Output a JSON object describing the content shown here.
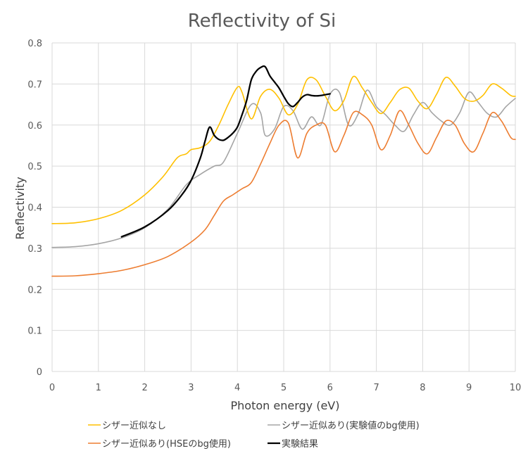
{
  "chart_data": {
    "type": "line",
    "title": "Reflectivity of Si",
    "xlabel": "Photon energy (eV)",
    "ylabel": "Reflectivity",
    "xlim": [
      0,
      10
    ],
    "ylim": [
      0,
      0.8
    ],
    "xticks": [
      0,
      1,
      2,
      3,
      4,
      5,
      6,
      7,
      8,
      9,
      10
    ],
    "yticks": [
      0,
      0.1,
      0.2,
      0.3,
      0.4,
      0.5,
      0.6,
      0.7,
      0.8
    ],
    "grid": true,
    "legend_position": "bottom",
    "series": [
      {
        "name": "シザー近似なし",
        "color": "#FFC000",
        "x": [
          0,
          0.5,
          1.0,
          1.5,
          2.0,
          2.4,
          2.7,
          2.9,
          3.0,
          3.2,
          3.4,
          3.6,
          3.8,
          4.0,
          4.1,
          4.3,
          4.5,
          4.7,
          4.9,
          5.1,
          5.3,
          5.5,
          5.7,
          5.9,
          6.1,
          6.3,
          6.5,
          6.7,
          6.9,
          7.1,
          7.3,
          7.5,
          7.7,
          7.9,
          8.1,
          8.3,
          8.5,
          8.7,
          8.9,
          9.1,
          9.3,
          9.5,
          9.7,
          9.9,
          10.0
        ],
        "values": [
          0.36,
          0.362,
          0.372,
          0.392,
          0.43,
          0.475,
          0.52,
          0.53,
          0.54,
          0.545,
          0.56,
          0.6,
          0.65,
          0.692,
          0.68,
          0.615,
          0.67,
          0.687,
          0.665,
          0.625,
          0.65,
          0.71,
          0.71,
          0.67,
          0.635,
          0.66,
          0.718,
          0.69,
          0.655,
          0.628,
          0.655,
          0.686,
          0.69,
          0.658,
          0.64,
          0.675,
          0.716,
          0.695,
          0.665,
          0.658,
          0.672,
          0.7,
          0.69,
          0.672,
          0.67
        ]
      },
      {
        "name": "シザー近似あり(実験値のbg使用)",
        "color": "#A5A5A5",
        "x": [
          0,
          0.5,
          1.0,
          1.5,
          2.0,
          2.5,
          2.9,
          3.2,
          3.5,
          3.7,
          4.0,
          4.3,
          4.5,
          4.6,
          4.8,
          5.0,
          5.2,
          5.4,
          5.6,
          5.8,
          6.0,
          6.2,
          6.4,
          6.6,
          6.8,
          7.0,
          7.2,
          7.4,
          7.6,
          7.8,
          8.0,
          8.2,
          8.4,
          8.6,
          8.8,
          9.0,
          9.2,
          9.4,
          9.6,
          9.8,
          10.0
        ],
        "values": [
          0.302,
          0.304,
          0.311,
          0.325,
          0.35,
          0.395,
          0.455,
          0.48,
          0.5,
          0.51,
          0.58,
          0.65,
          0.63,
          0.575,
          0.59,
          0.645,
          0.635,
          0.59,
          0.62,
          0.6,
          0.675,
          0.68,
          0.6,
          0.625,
          0.685,
          0.645,
          0.625,
          0.6,
          0.585,
          0.625,
          0.655,
          0.63,
          0.61,
          0.6,
          0.63,
          0.68,
          0.655,
          0.628,
          0.62,
          0.645,
          0.665
        ]
      },
      {
        "name": "シザー近似あり(HSEのbg使用)",
        "color": "#ED7D31",
        "x": [
          0,
          0.5,
          1.0,
          1.5,
          2.0,
          2.5,
          3.0,
          3.3,
          3.5,
          3.7,
          3.9,
          4.1,
          4.3,
          4.5,
          4.7,
          4.9,
          5.1,
          5.3,
          5.5,
          5.7,
          5.9,
          6.1,
          6.3,
          6.5,
          6.7,
          6.9,
          7.1,
          7.3,
          7.5,
          7.7,
          7.9,
          8.1,
          8.3,
          8.5,
          8.7,
          8.9,
          9.1,
          9.3,
          9.5,
          9.7,
          9.9,
          10.0
        ],
        "values": [
          0.232,
          0.233,
          0.238,
          0.246,
          0.26,
          0.28,
          0.315,
          0.345,
          0.38,
          0.415,
          0.43,
          0.445,
          0.46,
          0.505,
          0.555,
          0.6,
          0.605,
          0.52,
          0.58,
          0.6,
          0.6,
          0.535,
          0.575,
          0.63,
          0.625,
          0.6,
          0.54,
          0.575,
          0.635,
          0.6,
          0.555,
          0.53,
          0.57,
          0.61,
          0.6,
          0.555,
          0.535,
          0.58,
          0.63,
          0.61,
          0.57,
          0.565
        ]
      },
      {
        "name": "実験結果",
        "color": "#000000",
        "x": [
          1.5,
          2.0,
          2.5,
          2.8,
          3.0,
          3.2,
          3.3,
          3.4,
          3.5,
          3.6,
          3.7,
          3.8,
          3.9,
          4.0,
          4.1,
          4.2,
          4.3,
          4.4,
          4.5,
          4.6,
          4.7,
          4.8,
          4.9,
          5.0,
          5.1,
          5.2,
          5.3,
          5.4,
          5.5,
          5.6,
          5.7,
          5.8,
          5.9,
          6.0
        ],
        "values": [
          0.328,
          0.352,
          0.392,
          0.43,
          0.465,
          0.52,
          0.56,
          0.595,
          0.575,
          0.565,
          0.563,
          0.57,
          0.58,
          0.595,
          0.625,
          0.66,
          0.71,
          0.73,
          0.74,
          0.742,
          0.72,
          0.705,
          0.69,
          0.67,
          0.652,
          0.645,
          0.655,
          0.668,
          0.674,
          0.672,
          0.671,
          0.672,
          0.674,
          0.676
        ]
      }
    ]
  }
}
